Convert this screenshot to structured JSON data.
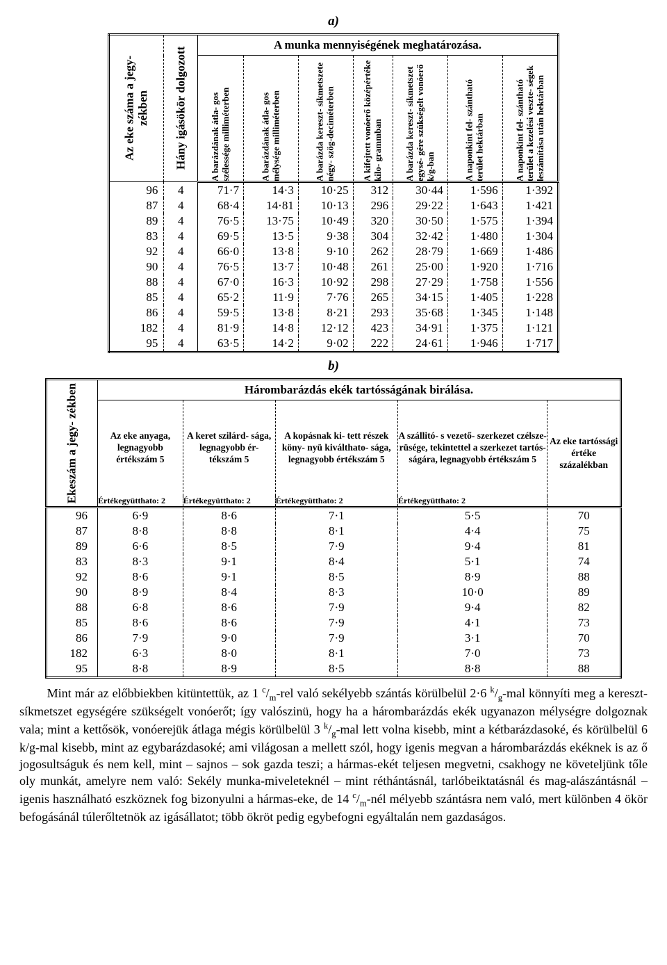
{
  "panel_a_label": "a)",
  "panel_b_label": "b)",
  "table_a": {
    "side_cols": [
      "Az eke száma a jegy-\nzékben",
      "Hány igásökör dolgozott"
    ],
    "banner": "A munka mennyiségének meghatározása.",
    "cols": [
      "A barázdának átla-\ngos szélessége\nmilliméterben",
      "A barázdának átla-\ngos mélysége\nmilliméterben",
      "A barázda kereszt-\nsíkmetszete négy-\nszög-deciméterben",
      "A kifejtett vonóerő\nközépértéke kilo-\ngrammban",
      "A barázda kereszt-\nsíkmetszet egysé-\ngére szükségelt\nvonóerő k/g-ban",
      "A naponkint fel-\nszántható terület\nhektárban",
      "A naponkint fel-\nszántható terület\na kezelési veszte-\nségek leszámítása\nután hektárban"
    ],
    "rows": [
      [
        "96",
        "4",
        "71·7",
        "14·3",
        "10·25",
        "312",
        "30·44",
        "1·596",
        "1·392"
      ],
      [
        "87",
        "4",
        "68·4",
        "14·81",
        "10·13",
        "296",
        "29·22",
        "1·643",
        "1·421"
      ],
      [
        "89",
        "4",
        "76·5",
        "13·75",
        "10·49",
        "320",
        "30·50",
        "1·575",
        "1·394"
      ],
      [
        "83",
        "4",
        "69·5",
        "13·5",
        "9·38",
        "304",
        "32·42",
        "1·480",
        "1·304"
      ],
      [
        "92",
        "4",
        "66·0",
        "13·8",
        "9·10",
        "262",
        "28·79",
        "1·669",
        "1·486"
      ],
      [
        "90",
        "4",
        "76·5",
        "13·7",
        "10·48",
        "261",
        "25·00",
        "1·920",
        "1·716"
      ],
      [
        "88",
        "4",
        "67·0",
        "16·3",
        "10·92",
        "298",
        "27·29",
        "1·758",
        "1·556"
      ],
      [
        "85",
        "4",
        "65·2",
        "11·9",
        "7·76",
        "265",
        "34·15",
        "1·405",
        "1·228"
      ],
      [
        "86",
        "4",
        "59·5",
        "13·8",
        "8·21",
        "293",
        "35·68",
        "1·345",
        "1·148"
      ],
      [
        "182",
        "4",
        "81·9",
        "14·8",
        "12·12",
        "423",
        "34·91",
        "1·375",
        "1·121"
      ],
      [
        "95",
        "4",
        "63·5",
        "14·2",
        "9·02",
        "222",
        "24·61",
        "1·946",
        "1·717"
      ]
    ]
  },
  "table_b": {
    "side_col": "Ekeszám a jegy-\nzékben",
    "banner": "Hárombarázdás ekék tartósságának birálása.",
    "cols": [
      "Az eke anyaga,\nlegnagyobb\nértékszám 5",
      "A keret szilárd-\nsága,\nlegnagyobb ér-\ntékszám 5",
      "A kopásnak ki-\ntett részek köny-\nnyü kiválthato-\nsága, legnagyobb\nértékszám 5",
      "A szállitó- s vezető-\nszerkezet czélsze-\nrüsége, tekintettel\na szerkezet tartós-\nságára, legnagyobb\nértékszám 5",
      "Az eke\ntartóssági értéke\nszázalékban"
    ],
    "subhdr": "Értékegyütthato: 2",
    "rows": [
      [
        "96",
        "6·9",
        "8·6",
        "7·1",
        "5·5",
        "70"
      ],
      [
        "87",
        "8·8",
        "8·8",
        "8·1",
        "4·4",
        "75"
      ],
      [
        "89",
        "6·6",
        "8·5",
        "7·9",
        "9·4",
        "81"
      ],
      [
        "83",
        "8·3",
        "9·1",
        "8·4",
        "5·1",
        "74"
      ],
      [
        "92",
        "8·6",
        "9·1",
        "8·5",
        "8·9",
        "88"
      ],
      [
        "90",
        "8·9",
        "8·4",
        "8·3",
        "10·0",
        "89"
      ],
      [
        "88",
        "6·8",
        "8·6",
        "7·9",
        "9·4",
        "82"
      ],
      [
        "85",
        "8·6",
        "8·6",
        "7·9",
        "4·1",
        "73"
      ],
      [
        "86",
        "7·9",
        "9·0",
        "7·9",
        "3·1",
        "70"
      ],
      [
        "182",
        "6·3",
        "8·0",
        "8·1",
        "7·0",
        "73"
      ],
      [
        "95",
        "8·8",
        "8·9",
        "8·5",
        "8·8",
        "88"
      ]
    ]
  },
  "paragraph": {
    "part1": "Mint már az előbbiekben kitüntettük, az 1 ",
    "unit1a": "c",
    "unit1b": "/",
    "unit1c": "m",
    "part2": "-rel való sekélyebb szántás körülbelül 2·6 ",
    "unit2a": "k",
    "unit2b": "/",
    "unit2c": "g",
    "part3": "-mal könnyíti meg a kereszt-síkmetszet egységére szükségelt vonóerőt; így valószinü, hogy ha a hárombarázdás ekék ugyanazon mélységre dolgoznak vala; mint a kettősök, vonóerejük átlaga mégis körülbelül 3 ",
    "unit3a": "k",
    "unit3b": "/",
    "unit3c": "g",
    "part4": "-mal lett volna kisebb, mint a kétbarázdasoké, és körülbelül 6 k/g-mal kisebb, mint az egybarázdasoké; ami világosan a mellett szól, hogy igenis megvan a hárombarázdás ekéknek is az ő jogosultságuk és nem kell, mint – sajnos – sok gazda teszi; a hármas-ekét teljesen megvetni, csakhogy ne követeljünk tőle oly munkát, amelyre nem való: Sekély munka-miveleteknél – mint réthántásnál, tarlóbeiktatásnál és mag-alászántásnál – igenis használható eszköznek fog bizonyulni a hármas-eke, de 14 ",
    "unit4a": "c",
    "unit4b": "/",
    "unit4c": "m",
    "part5": "-nél mélyebb szántásra nem való, mert különben 4 ökör befogásánál túlerőltetnök az igásállatot; több ökröt pedig egybefogni egyáltalán nem gazdaságos."
  }
}
